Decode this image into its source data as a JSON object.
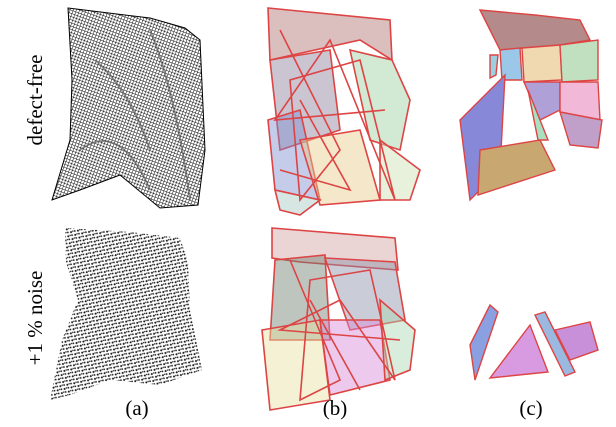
{
  "row_labels": [
    "defect-free",
    "+1 % noise"
  ],
  "column_labels": [
    "(a)",
    "(b)",
    "(c)"
  ]
}
